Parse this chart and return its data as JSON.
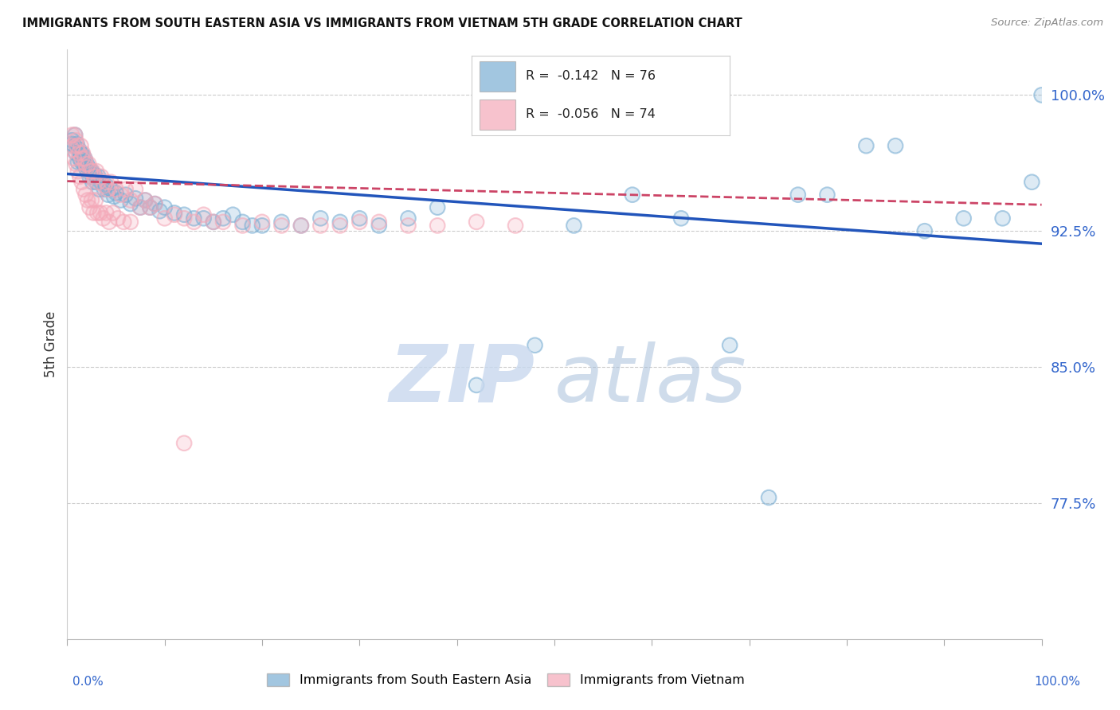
{
  "title": "IMMIGRANTS FROM SOUTH EASTERN ASIA VS IMMIGRANTS FROM VIETNAM 5TH GRADE CORRELATION CHART",
  "source": "Source: ZipAtlas.com",
  "ylabel": "5th Grade",
  "xlim": [
    0.0,
    1.0
  ],
  "ylim": [
    0.7,
    1.025
  ],
  "yticks": [
    0.775,
    0.85,
    0.925,
    1.0
  ],
  "ytick_labels": [
    "77.5%",
    "85.0%",
    "92.5%",
    "100.0%"
  ],
  "blue_color": "#7bafd4",
  "pink_color": "#f4a8b8",
  "blue_line_color": "#2255bb",
  "pink_line_color": "#cc4466",
  "legend_blue_R": "-0.142",
  "legend_blue_N": "76",
  "legend_pink_R": "-0.056",
  "legend_pink_N": "74",
  "blue_line_y_start": 0.9565,
  "blue_line_y_end": 0.918,
  "pink_line_y_start": 0.9525,
  "pink_line_y_end": 0.9395,
  "blue_scatter_x": [
    0.005,
    0.007,
    0.009,
    0.01,
    0.012,
    0.013,
    0.014,
    0.015,
    0.016,
    0.017,
    0.018,
    0.019,
    0.02,
    0.021,
    0.022,
    0.023,
    0.025,
    0.026,
    0.028,
    0.03,
    0.032,
    0.033,
    0.035,
    0.038,
    0.04,
    0.042,
    0.045,
    0.048,
    0.05,
    0.055,
    0.06,
    0.065,
    0.07,
    0.075,
    0.08,
    0.085,
    0.09,
    0.095,
    0.1,
    0.11,
    0.12,
    0.13,
    0.14,
    0.15,
    0.16,
    0.17,
    0.18,
    0.19,
    0.2,
    0.22,
    0.24,
    0.26,
    0.28,
    0.3,
    0.32,
    0.35,
    0.38,
    0.42,
    0.48,
    0.52,
    0.58,
    0.63,
    0.68,
    0.72,
    0.75,
    0.78,
    0.82,
    0.85,
    0.88,
    0.92,
    0.96,
    0.99,
    1.0,
    0.005,
    0.008,
    0.011
  ],
  "blue_scatter_y": [
    0.975,
    0.972,
    0.968,
    0.973,
    0.97,
    0.965,
    0.968,
    0.963,
    0.967,
    0.962,
    0.965,
    0.96,
    0.962,
    0.958,
    0.96,
    0.955,
    0.958,
    0.952,
    0.956,
    0.952,
    0.955,
    0.948,
    0.952,
    0.948,
    0.95,
    0.945,
    0.948,
    0.944,
    0.946,
    0.942,
    0.945,
    0.94,
    0.943,
    0.938,
    0.942,
    0.938,
    0.94,
    0.936,
    0.938,
    0.935,
    0.934,
    0.932,
    0.932,
    0.93,
    0.932,
    0.934,
    0.93,
    0.928,
    0.928,
    0.93,
    0.928,
    0.932,
    0.93,
    0.932,
    0.928,
    0.932,
    0.938,
    0.84,
    0.862,
    0.928,
    0.945,
    0.932,
    0.862,
    0.778,
    0.945,
    0.945,
    0.972,
    0.972,
    0.925,
    0.932,
    0.932,
    0.952,
    1.0,
    0.973,
    0.978,
    0.963
  ],
  "pink_scatter_x": [
    0.005,
    0.006,
    0.008,
    0.009,
    0.01,
    0.012,
    0.014,
    0.015,
    0.016,
    0.018,
    0.019,
    0.02,
    0.022,
    0.024,
    0.026,
    0.028,
    0.03,
    0.032,
    0.035,
    0.038,
    0.04,
    0.042,
    0.045,
    0.05,
    0.055,
    0.06,
    0.065,
    0.07,
    0.075,
    0.08,
    0.085,
    0.09,
    0.1,
    0.11,
    0.12,
    0.13,
    0.14,
    0.15,
    0.16,
    0.18,
    0.2,
    0.22,
    0.24,
    0.26,
    0.28,
    0.3,
    0.32,
    0.35,
    0.38,
    0.42,
    0.46,
    0.12,
    0.005,
    0.007,
    0.009,
    0.011,
    0.013,
    0.015,
    0.017,
    0.019,
    0.021,
    0.023,
    0.025,
    0.027,
    0.029,
    0.031,
    0.034,
    0.037,
    0.04,
    0.043,
    0.047,
    0.052,
    0.058,
    0.065
  ],
  "pink_scatter_y": [
    0.978,
    0.972,
    0.978,
    0.975,
    0.972,
    0.968,
    0.972,
    0.965,
    0.968,
    0.965,
    0.962,
    0.96,
    0.962,
    0.958,
    0.958,
    0.955,
    0.958,
    0.952,
    0.955,
    0.95,
    0.952,
    0.948,
    0.952,
    0.948,
    0.945,
    0.948,
    0.942,
    0.948,
    0.938,
    0.942,
    0.938,
    0.94,
    0.932,
    0.934,
    0.932,
    0.93,
    0.934,
    0.93,
    0.93,
    0.928,
    0.93,
    0.928,
    0.928,
    0.928,
    0.928,
    0.93,
    0.93,
    0.928,
    0.928,
    0.93,
    0.928,
    0.808,
    0.97,
    0.965,
    0.962,
    0.958,
    0.955,
    0.952,
    0.948,
    0.945,
    0.942,
    0.938,
    0.942,
    0.935,
    0.942,
    0.935,
    0.935,
    0.932,
    0.935,
    0.93,
    0.935,
    0.932,
    0.93,
    0.93
  ]
}
